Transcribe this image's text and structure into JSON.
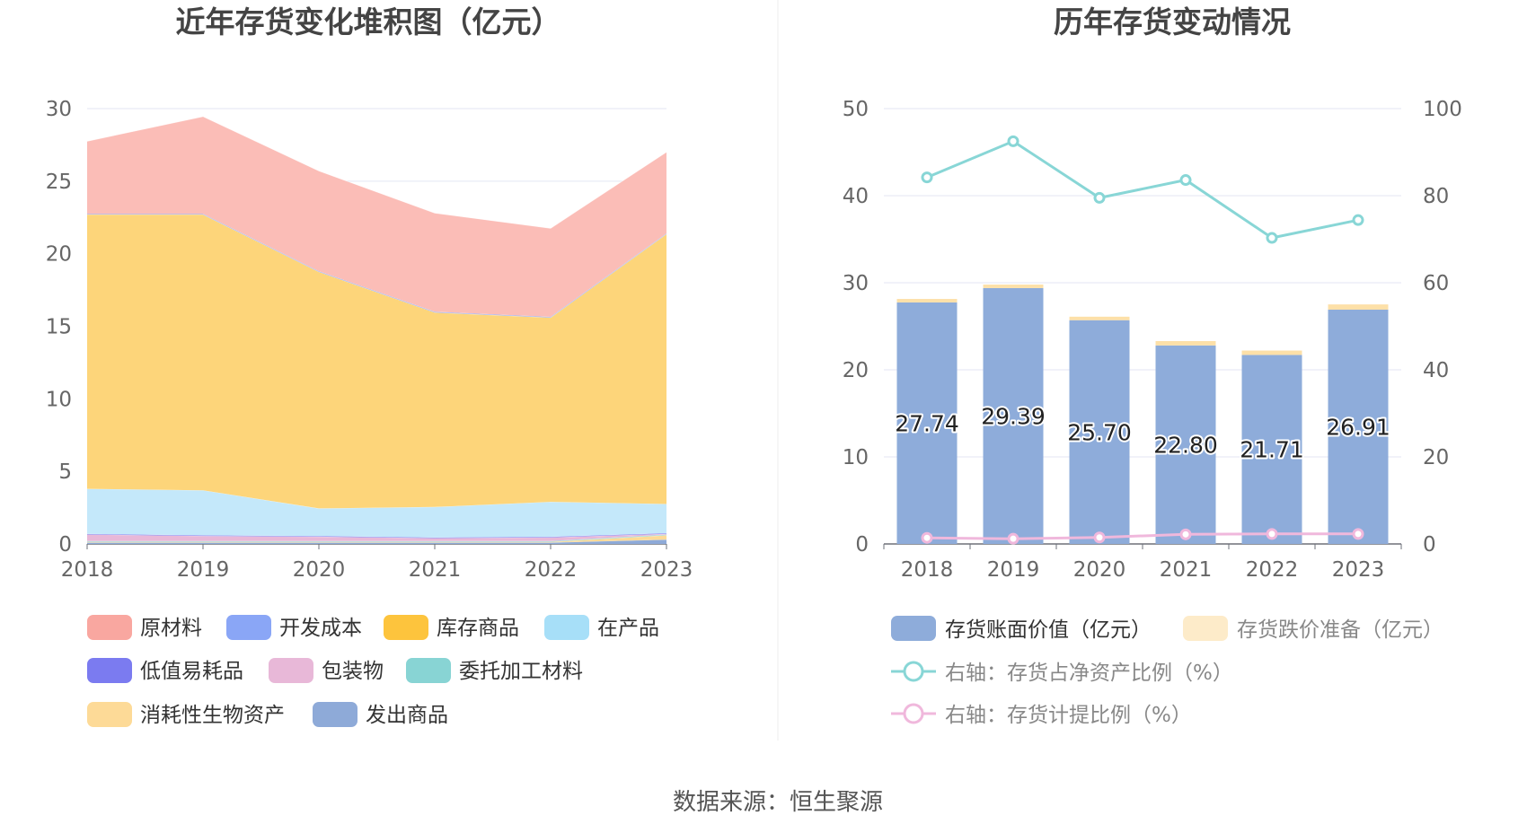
{
  "source": "数据来源：恒生聚源",
  "chart_data": [
    {
      "type": "area",
      "stacked": true,
      "title": "近年存货变化堆积图（亿元）",
      "categories": [
        "2018",
        "2019",
        "2020",
        "2021",
        "2022",
        "2023"
      ],
      "ylim": [
        0,
        30
      ],
      "yticks": [
        0,
        5,
        10,
        15,
        20,
        25,
        30
      ],
      "grid": true,
      "legend_position": "bottom",
      "series": [
        {
          "name": "发出商品",
          "color": "#8eaad8",
          "values": [
            0.1,
            0.1,
            0.1,
            0.1,
            0.1,
            0.3
          ]
        },
        {
          "name": "消耗性生物资产",
          "color": "#fdda97",
          "values": [
            0.05,
            0.05,
            0.05,
            0.05,
            0.05,
            0.3
          ]
        },
        {
          "name": "委托加工材料",
          "color": "#88d4d4",
          "values": [
            0.05,
            0.05,
            0.05,
            0.05,
            0.05,
            0.05
          ]
        },
        {
          "name": "包装物",
          "color": "#e8b8d8",
          "values": [
            0.45,
            0.35,
            0.3,
            0.2,
            0.25,
            0.05
          ]
        },
        {
          "name": "低值易耗品",
          "color": "#7b7bf0",
          "values": [
            0.05,
            0.05,
            0.05,
            0.05,
            0.05,
            0.05
          ]
        },
        {
          "name": "在产品",
          "color": "#c4e8fa",
          "values": [
            3.1,
            3.1,
            1.9,
            2.1,
            2.4,
            2.0
          ]
        },
        {
          "name": "库存商品",
          "color": "#fdd57a",
          "values": [
            18.9,
            19.0,
            16.3,
            13.4,
            12.7,
            18.6
          ]
        },
        {
          "name": "开发成本",
          "color": "#8aa6f6",
          "values": [
            0.05,
            0.05,
            0.05,
            0.05,
            0.05,
            0.05
          ]
        },
        {
          "name": "原材料",
          "color": "#fbbdb7",
          "values": [
            5.0,
            6.7,
            6.9,
            6.8,
            6.1,
            5.6
          ]
        }
      ],
      "legend": [
        {
          "name": "原材料",
          "color": "#f9a7a0"
        },
        {
          "name": "开发成本",
          "color": "#8aa6f6"
        },
        {
          "name": "库存商品",
          "color": "#fdc43d"
        },
        {
          "name": "在产品",
          "color": "#a7dff8"
        },
        {
          "name": "低值易耗品",
          "color": "#7b7bf0"
        },
        {
          "name": "包装物",
          "color": "#e8b8d8"
        },
        {
          "name": "委托加工材料",
          "color": "#88d4d4"
        },
        {
          "name": "消耗性生物资产",
          "color": "#fdda97"
        },
        {
          "name": "发出商品",
          "color": "#8eaad8"
        }
      ]
    },
    {
      "type": "bar+line",
      "title": "历年存货变动情况",
      "categories": [
        "2018",
        "2019",
        "2020",
        "2021",
        "2022",
        "2023"
      ],
      "ylim": [
        0,
        50
      ],
      "yticks": [
        0,
        10,
        20,
        30,
        40,
        50
      ],
      "y2lim": [
        0,
        100
      ],
      "y2ticks": [
        0,
        20,
        40,
        60,
        80,
        100
      ],
      "grid": true,
      "legend_position": "bottom",
      "bars": [
        {
          "name": "存货账面价值（亿元）",
          "color": "#8eacda",
          "values": [
            27.74,
            29.39,
            25.7,
            22.8,
            21.71,
            26.91
          ],
          "labels": [
            "27.74",
            "29.39",
            "25.70",
            "22.80",
            "21.71",
            "26.91"
          ]
        },
        {
          "name": "存货跌价准备（亿元）",
          "color": "#fde0a8",
          "legend_color": "#fdebc9",
          "values": [
            0.4,
            0.4,
            0.4,
            0.5,
            0.5,
            0.6
          ]
        }
      ],
      "lines": [
        {
          "name": "右轴：存货占净资产比例（%）",
          "color": "#88d6d6",
          "axis": "right",
          "values": [
            84.2,
            92.5,
            79.5,
            83.6,
            70.3,
            74.4
          ]
        },
        {
          "name": "右轴：存货计提比例（%）",
          "color": "#f0b8dc",
          "axis": "right",
          "values": [
            1.4,
            1.2,
            1.5,
            2.2,
            2.3,
            2.3
          ]
        }
      ]
    }
  ]
}
